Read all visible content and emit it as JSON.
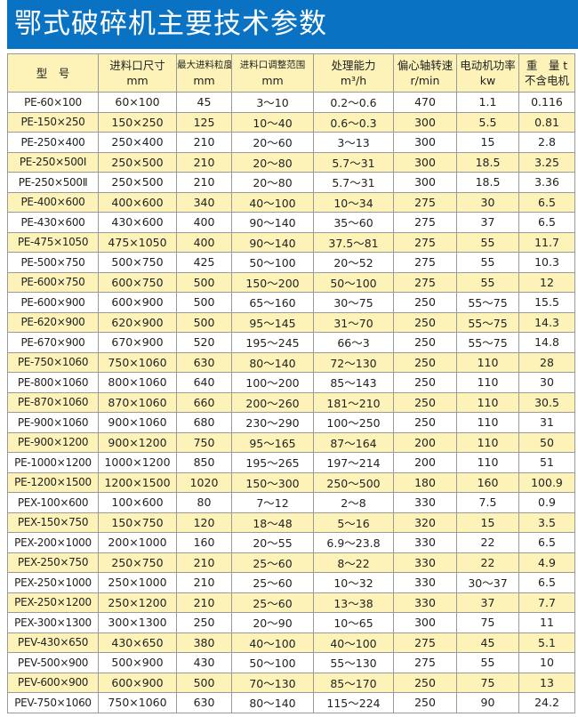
{
  "title": "鄂式破碎机主要技术参数",
  "headers": [
    {
      "l1": "型　号",
      "l2": ""
    },
    {
      "l1": "进料口尺寸",
      "l2": "mm"
    },
    {
      "l1": "最大进料粒度",
      "l2": "mm"
    },
    {
      "l1": "进料口调整范围",
      "l2": "mm"
    },
    {
      "l1": "处理能力",
      "l2": "m³/h"
    },
    {
      "l1": "偏心轴转速",
      "l2": "r/min"
    },
    {
      "l1": "电动机功率",
      "l2": "kw"
    },
    {
      "l1": "重　量 t",
      "l2": "不含电机"
    }
  ],
  "row_colors": {
    "odd": "#ffffff",
    "even": "#fdf3b8"
  },
  "rows": [
    [
      "PE-60×100",
      "60×100",
      "45",
      "3～10",
      "0.2～0.6",
      "470",
      "1.1",
      "0.116"
    ],
    [
      "PE-150×250",
      "150×250",
      "125",
      "10～40",
      "0.6～0.3",
      "300",
      "5.5",
      "0.81"
    ],
    [
      "PE-250×400",
      "250×400",
      "210",
      "20～60",
      "3～13",
      "300",
      "15",
      "2.8"
    ],
    [
      "PE-250×500Ⅰ",
      "250×500",
      "210",
      "20～80",
      "5.7～31",
      "300",
      "18.5",
      "3.25"
    ],
    [
      "PE-250×500Ⅱ",
      "250×500",
      "210",
      "20～80",
      "5.7～31",
      "300",
      "18.5",
      "3.36"
    ],
    [
      "PE-400×600",
      "400×600",
      "340",
      "40～100",
      "10～34",
      "275",
      "30",
      "6.5"
    ],
    [
      "PE-430×600",
      "430×600",
      "400",
      "90～140",
      "35～60",
      "275",
      "37",
      "6.5"
    ],
    [
      "PE-475×1050",
      "475×1050",
      "400",
      "90～140",
      "37.5～81",
      "275",
      "55",
      "11.7"
    ],
    [
      "PE-500×750",
      "500×750",
      "425",
      "50～100",
      "20～52",
      "275",
      "55",
      "10.3"
    ],
    [
      "PE-600×750",
      "600×750",
      "500",
      "150～200",
      "50～100",
      "275",
      "55",
      "12"
    ],
    [
      "PE-600×900",
      "600×900",
      "500",
      "65～160",
      "30～75",
      "250",
      "55～75",
      "15.5"
    ],
    [
      "PE-620×900",
      "620×900",
      "500",
      "95～145",
      "31～70",
      "250",
      "55～75",
      "14.3"
    ],
    [
      "PE-670×900",
      "670×900",
      "520",
      "195～245",
      "66～3",
      "250",
      "55～75",
      "14.8"
    ],
    [
      "PE-750×1060",
      "750×1060",
      "630",
      "80～140",
      "72～130",
      "250",
      "110",
      "28"
    ],
    [
      "PE-800×1060",
      "800×1060",
      "640",
      "100～200",
      "85～143",
      "250",
      "110",
      "30"
    ],
    [
      "PE-870×1060",
      "870×1060",
      "660",
      "200～260",
      "181～210",
      "250",
      "110",
      "30.5"
    ],
    [
      "PE-900×1060",
      "900×1060",
      "680",
      "230～290",
      "100～250",
      "250",
      "110",
      "31"
    ],
    [
      "PE-900×1200",
      "900×1200",
      "750",
      "95～165",
      "87～164",
      "200",
      "110",
      "50"
    ],
    [
      "PE-1000×1200",
      "1000×1200",
      "850",
      "195～265",
      "197～214",
      "200",
      "110",
      "51"
    ],
    [
      "PE-1200×1500",
      "1200×1500",
      "1020",
      "150～300",
      "250～500",
      "180",
      "160",
      "100.9"
    ],
    [
      "PEX-100×600",
      "100×600",
      "80",
      "7～12",
      "2～8",
      "330",
      "7.5",
      "0.9"
    ],
    [
      "PEX-150×750",
      "150×750",
      "120",
      "18～48",
      "5～16",
      "320",
      "15",
      "3.5"
    ],
    [
      "PEX-200×1000",
      "200×1000",
      "160",
      "20～55",
      "6.9～23.8",
      "330",
      "22",
      "6.5"
    ],
    [
      "PEX-250×750",
      "250×750",
      "210",
      "25～60",
      "8～22",
      "330",
      "22",
      "4.9"
    ],
    [
      "PEX-250×1000",
      "250×1000",
      "210",
      "25～60",
      "10～32",
      "330",
      "30～37",
      "6.5"
    ],
    [
      "PEX-250×1200",
      "250×1200",
      "210",
      "25～60",
      "13～38",
      "330",
      "37",
      "7.7"
    ],
    [
      "PEX-300×1300",
      "300×1300",
      "250",
      "20～90",
      "10～65",
      "300",
      "75",
      "11"
    ],
    [
      "PEV-430×650",
      "430×650",
      "380",
      "40～100",
      "40～100",
      "275",
      "45",
      "5.1"
    ],
    [
      "PEV-500×900",
      "500×900",
      "430",
      "50～100",
      "55～130",
      "275",
      "55",
      "10"
    ],
    [
      "PEV-600×900",
      "600×900",
      "500",
      "70～130",
      "85～170",
      "250",
      "75",
      "13"
    ],
    [
      "PEV-750×1060",
      "750×1060",
      "630",
      "80～140",
      "115～224",
      "250",
      "90",
      "24.2"
    ]
  ]
}
